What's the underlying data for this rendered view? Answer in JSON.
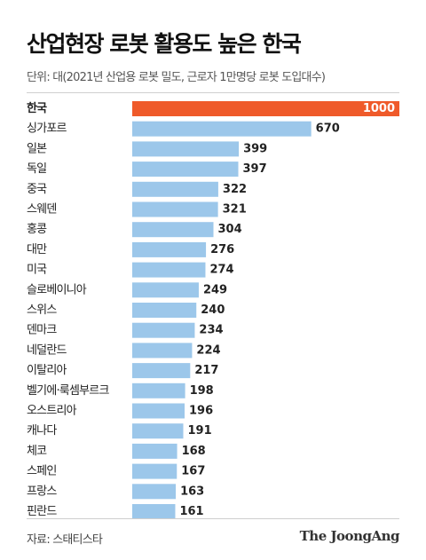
{
  "title": "산업현장 로봇 활용도 높은 한국",
  "subtitle": "단위: 대(2021년 산업용 로봇 밀도, 근로자 1만명당 로봇 도입대수)",
  "source": "자료: 스태티스타",
  "logo": "The JoongAng",
  "colors": {
    "highlight_bar": "#ef5a2a",
    "bar": "#9cc7ea",
    "highlight_value": "#ffffff",
    "value": "#222222"
  },
  "chart_data": {
    "type": "bar",
    "orientation": "horizontal",
    "categories": [
      "한국",
      "싱가포르",
      "일본",
      "독일",
      "중국",
      "스웨덴",
      "홍콩",
      "대만",
      "미국",
      "슬로베이니아",
      "스위스",
      "덴마크",
      "네덜란드",
      "이탈리아",
      "벨기에·룩셈부르크",
      "오스트리아",
      "캐나다",
      "체코",
      "스페인",
      "프랑스",
      "핀란드"
    ],
    "values": [
      1000,
      670,
      399,
      397,
      322,
      321,
      304,
      276,
      274,
      249,
      240,
      234,
      224,
      217,
      198,
      196,
      191,
      168,
      167,
      163,
      161
    ],
    "labels": [
      "1000",
      "670",
      "399",
      "397",
      "322",
      "321",
      "304",
      "276",
      "274",
      "249",
      "240",
      "234",
      "224",
      "217",
      "198",
      "196",
      "191",
      "168",
      "167",
      "163",
      "161"
    ],
    "highlight_index": 0,
    "xlim": [
      0,
      1000
    ],
    "grid": false,
    "legend": "none"
  }
}
